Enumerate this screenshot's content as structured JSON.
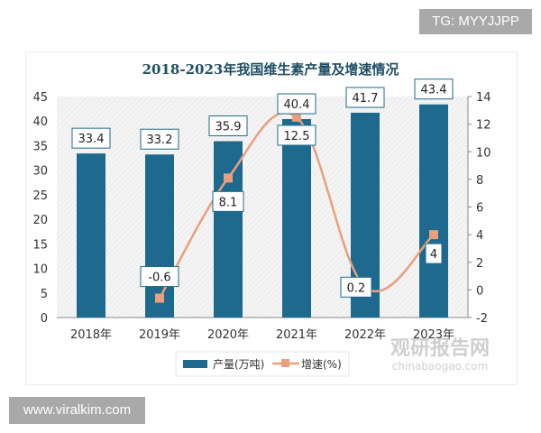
{
  "watermarks": {
    "top_right": "TG: MYYJJPP",
    "bottom_left": "www.viralkim.com",
    "site_name": "观研报告网",
    "site_url": "chinabaogao.com"
  },
  "chart_data": {
    "type": "bar+line",
    "title": "2018-2023年我国维生素产量及增速情况",
    "categories": [
      "2018年",
      "2019年",
      "2020年",
      "2021年",
      "2022年",
      "2023年"
    ],
    "series": [
      {
        "name": "产量(万吨)",
        "type": "bar",
        "axis": "left",
        "color": "#1d6a8e",
        "values": [
          33.4,
          33.2,
          35.9,
          40.4,
          41.7,
          43.4
        ],
        "labels": [
          "33.4",
          "33.2",
          "35.9",
          "40.4",
          "41.7",
          "43.4"
        ]
      },
      {
        "name": "增速(%)",
        "type": "line",
        "axis": "right",
        "color": "#e8a07f",
        "smooth": true,
        "marker": "square",
        "values": [
          null,
          -0.6,
          8.1,
          12.5,
          0.2,
          4
        ],
        "labels": [
          "",
          "-0.6",
          "8.1",
          "12.5",
          "0.2",
          "4"
        ]
      }
    ],
    "y_left": {
      "range": [
        0,
        45
      ],
      "ticks": [
        "0",
        "5",
        "10",
        "15",
        "20",
        "25",
        "30",
        "35",
        "40",
        "45"
      ]
    },
    "y_right": {
      "range": [
        -2,
        14
      ],
      "ticks": [
        "-2",
        "0",
        "2",
        "4",
        "6",
        "8",
        "10",
        "12",
        "14"
      ]
    },
    "legend": "bottom",
    "grid": false
  }
}
